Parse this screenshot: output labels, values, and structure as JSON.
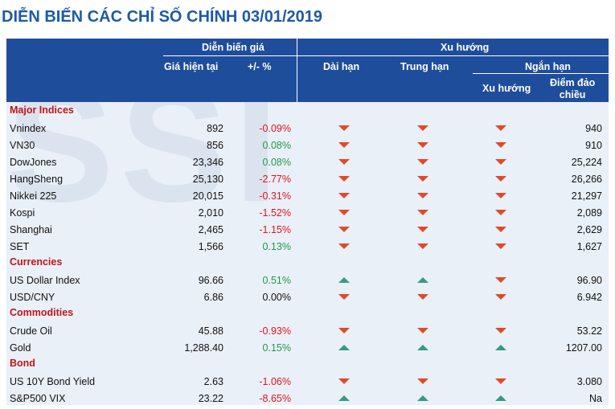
{
  "title": "DIỄN BIẾN CÁC CHỈ SỐ CHÍNH 03/01/2019",
  "watermark": "SSI",
  "header": {
    "price_group": "Diễn biến giá",
    "trend_group": "Xu hướng",
    "price_now": "Giá hiện tại",
    "change_pct": "+/- %",
    "long_term": "Dài hạn",
    "mid_term": "Trung hạn",
    "short_term": "Ngắn hạn",
    "short_trend": "Xu hướng",
    "pivot_line1": "Điểm đảo",
    "pivot_line2": "chiều"
  },
  "colors": {
    "header_bg": "#1e4d9b",
    "section_red": "#c0141a",
    "negative": "#e0141a",
    "positive": "#1f9a4a",
    "arrow_down": "#e04a2a",
    "arrow_up": "#3a9a7f"
  },
  "sections": [
    {
      "label": "Major Indices",
      "rows": [
        {
          "name": "Vnindex",
          "price": "892",
          "change": "-0.09%",
          "dir": "neg",
          "long": "down",
          "mid": "down",
          "short": "down",
          "pivot": "940"
        },
        {
          "name": "VN30",
          "price": "856",
          "change": "0.08%",
          "dir": "pos",
          "long": "down",
          "mid": "down",
          "short": "down",
          "pivot": "910"
        },
        {
          "name": "DowJones",
          "price": "23,346",
          "change": "0.08%",
          "dir": "pos",
          "long": "down",
          "mid": "down",
          "short": "down",
          "pivot": "25,224"
        },
        {
          "name": "HangSheng",
          "price": "25,130",
          "change": "-2.77%",
          "dir": "neg",
          "long": "down",
          "mid": "down",
          "short": "down",
          "pivot": "26,266"
        },
        {
          "name": "Nikkei 225",
          "price": "20,015",
          "change": "-0.31%",
          "dir": "neg",
          "long": "down",
          "mid": "down",
          "short": "down",
          "pivot": "21,297"
        },
        {
          "name": "Kospi",
          "price": "2,010",
          "change": "-1.52%",
          "dir": "neg",
          "long": "down",
          "mid": "down",
          "short": "down",
          "pivot": "2,089"
        },
        {
          "name": "Shanghai",
          "price": "2,465",
          "change": "-1.15%",
          "dir": "neg",
          "long": "down",
          "mid": "down",
          "short": "down",
          "pivot": "2,629"
        },
        {
          "name": "SET",
          "price": "1,566",
          "change": "0.13%",
          "dir": "pos",
          "long": "down",
          "mid": "down",
          "short": "down",
          "pivot": "1,627"
        }
      ]
    },
    {
      "label": "Currencies",
      "rows": [
        {
          "name": "US Dollar Index",
          "price": "96.66",
          "change": "0.51%",
          "dir": "pos",
          "long": "up",
          "mid": "up",
          "short": "down",
          "pivot": "96.90"
        },
        {
          "name": "USD/CNY",
          "price": "6.86",
          "change": "0.00%",
          "dir": "zero",
          "long": "down",
          "mid": "down",
          "short": "down",
          "pivot": "6.942"
        }
      ]
    },
    {
      "label": "Commodities",
      "rows": [
        {
          "name": "Crude Oil",
          "price": "45.88",
          "change": "-0.93%",
          "dir": "neg",
          "long": "down",
          "mid": "down",
          "short": "down",
          "pivot": "53.22"
        },
        {
          "name": "Gold",
          "price": "1,288.40",
          "change": "0.15%",
          "dir": "pos",
          "long": "up",
          "mid": "up",
          "short": "up",
          "pivot": "1207.00"
        }
      ]
    },
    {
      "label": "Bond",
      "rows": [
        {
          "name": "US 10Y Bond Yield",
          "price": "2.63",
          "change": "-1.06%",
          "dir": "neg",
          "long": "down",
          "mid": "down",
          "short": "down",
          "pivot": "3.080"
        },
        {
          "name": "S&P500 VIX",
          "price": "23.22",
          "change": "-8.65%",
          "dir": "neg",
          "long": "up",
          "mid": "up",
          "short": "up",
          "pivot": "Na"
        }
      ]
    }
  ]
}
